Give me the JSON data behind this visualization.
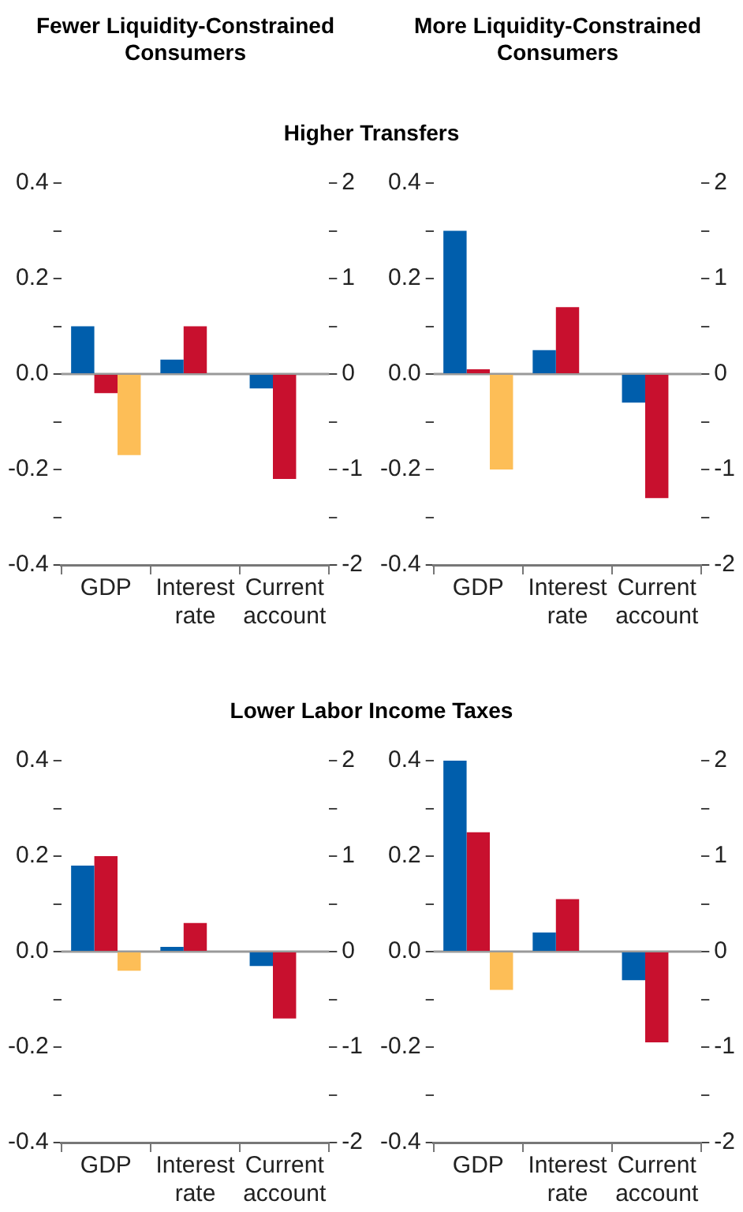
{
  "chart_data": [
    {
      "type": "bar",
      "title": "Fewer Liquidity-Constrained Consumers",
      "subtitle": "Higher Transfers",
      "categories": [
        "GDP",
        "Interest rate",
        "Current account"
      ],
      "series": [
        {
          "color": "#005eac",
          "values": [
            0.1,
            0.03,
            -0.03
          ]
        },
        {
          "color": "#c8102e",
          "values": [
            -0.04,
            0.1,
            -0.22
          ]
        },
        {
          "color": "#fdbe57",
          "values": [
            -0.17,
            null,
            null
          ]
        }
      ],
      "ylim": [
        -0.4,
        0.4
      ],
      "yticks": [
        -0.4,
        {
          "value": -0.3,
          "label": null
        },
        -0.2,
        {
          "value": -0.1,
          "label": null
        },
        {
          "value": 0,
          "label": "0.0"
        },
        {
          "value": 0.1,
          "label": null
        },
        0.2,
        {
          "value": 0.3,
          "label": null
        },
        0.4
      ],
      "y2lim": [
        -2,
        2
      ],
      "y2ticks": [
        -2,
        {
          "value": -1.5,
          "label": null
        },
        -1,
        {
          "value": -0.5,
          "label": null
        },
        0,
        {
          "value": 0.5,
          "label": null
        },
        1,
        {
          "value": 1.5,
          "label": null
        },
        2
      ],
      "ref_lines": [
        {
          "axis": "y",
          "value": 0,
          "color": "#999999"
        }
      ],
      "grid": false
    },
    {
      "type": "bar",
      "title": "More Liquidity-Constrained Consumers",
      "categories": [
        "GDP",
        "Interest rate",
        "Current account"
      ],
      "series": [
        {
          "color": "#005eac",
          "values": [
            0.3,
            0.05,
            -0.06
          ]
        },
        {
          "color": "#c8102e",
          "values": [
            0.01,
            0.14,
            -0.26
          ]
        },
        {
          "color": "#fdbe57",
          "values": [
            -0.2,
            null,
            null
          ]
        }
      ],
      "ylim": [
        -0.4,
        0.4
      ],
      "yticks": [
        -0.4,
        {
          "value": -0.3,
          "label": null
        },
        -0.2,
        {
          "value": -0.1,
          "label": null
        },
        {
          "value": 0,
          "label": "0.0"
        },
        {
          "value": 0.1,
          "label": null
        },
        0.2,
        {
          "value": 0.3,
          "label": null
        },
        0.4
      ],
      "y2lim": [
        -2,
        2
      ],
      "y2ticks": [
        -2,
        {
          "value": -1.5,
          "label": null
        },
        -1,
        {
          "value": -0.5,
          "label": null
        },
        0,
        {
          "value": 0.5,
          "label": null
        },
        1,
        {
          "value": 1.5,
          "label": null
        },
        2
      ],
      "ref_lines": [
        {
          "axis": "y",
          "value": 0,
          "color": "#999999"
        }
      ],
      "grid": false
    },
    {
      "type": "bar",
      "subtitle": "Lower Labor Income Taxes",
      "categories": [
        "GDP",
        "Interest rate",
        "Current account"
      ],
      "series": [
        {
          "color": "#005eac",
          "values": [
            0.18,
            0.01,
            -0.03
          ]
        },
        {
          "color": "#c8102e",
          "values": [
            0.2,
            0.06,
            -0.14
          ]
        },
        {
          "color": "#fdbe57",
          "values": [
            -0.04,
            null,
            null
          ]
        }
      ],
      "ylim": [
        -0.4,
        0.4
      ],
      "yticks": [
        -0.4,
        {
          "value": -0.3,
          "label": null
        },
        -0.2,
        {
          "value": -0.1,
          "label": null
        },
        {
          "value": 0,
          "label": "0.0"
        },
        {
          "value": 0.1,
          "label": null
        },
        0.2,
        {
          "value": 0.3,
          "label": null
        },
        0.4
      ],
      "y2lim": [
        -2,
        2
      ],
      "y2ticks": [
        -2,
        {
          "value": -1.5,
          "label": null
        },
        -1,
        {
          "value": -0.5,
          "label": null
        },
        0,
        {
          "value": 0.5,
          "label": null
        },
        1,
        {
          "value": 1.5,
          "label": null
        },
        2
      ],
      "ref_lines": [
        {
          "axis": "y",
          "value": 0,
          "color": "#999999"
        }
      ],
      "grid": false
    },
    {
      "type": "bar",
      "categories": [
        "GDP",
        "Interest rate",
        "Current account"
      ],
      "series": [
        {
          "color": "#005eac",
          "values": [
            0.4,
            0.04,
            -0.06
          ]
        },
        {
          "color": "#c8102e",
          "values": [
            0.25,
            0.11,
            -0.19
          ]
        },
        {
          "color": "#fdbe57",
          "values": [
            -0.08,
            null,
            null
          ]
        }
      ],
      "ylim": [
        -0.4,
        0.4
      ],
      "yticks": [
        -0.4,
        {
          "value": -0.3,
          "label": null
        },
        -0.2,
        {
          "value": -0.1,
          "label": null
        },
        {
          "value": 0,
          "label": "0.0"
        },
        {
          "value": 0.1,
          "label": null
        },
        0.2,
        {
          "value": 0.3,
          "label": null
        },
        0.4
      ],
      "y2lim": [
        -2,
        2
      ],
      "y2ticks": [
        -2,
        {
          "value": -1.5,
          "label": null
        },
        -1,
        {
          "value": -0.5,
          "label": null
        },
        0,
        {
          "value": 0.5,
          "label": null
        },
        1,
        {
          "value": 1.5,
          "label": null
        },
        2
      ],
      "ref_lines": [
        {
          "axis": "y",
          "value": 0,
          "color": "#999999"
        }
      ],
      "grid": false
    }
  ]
}
